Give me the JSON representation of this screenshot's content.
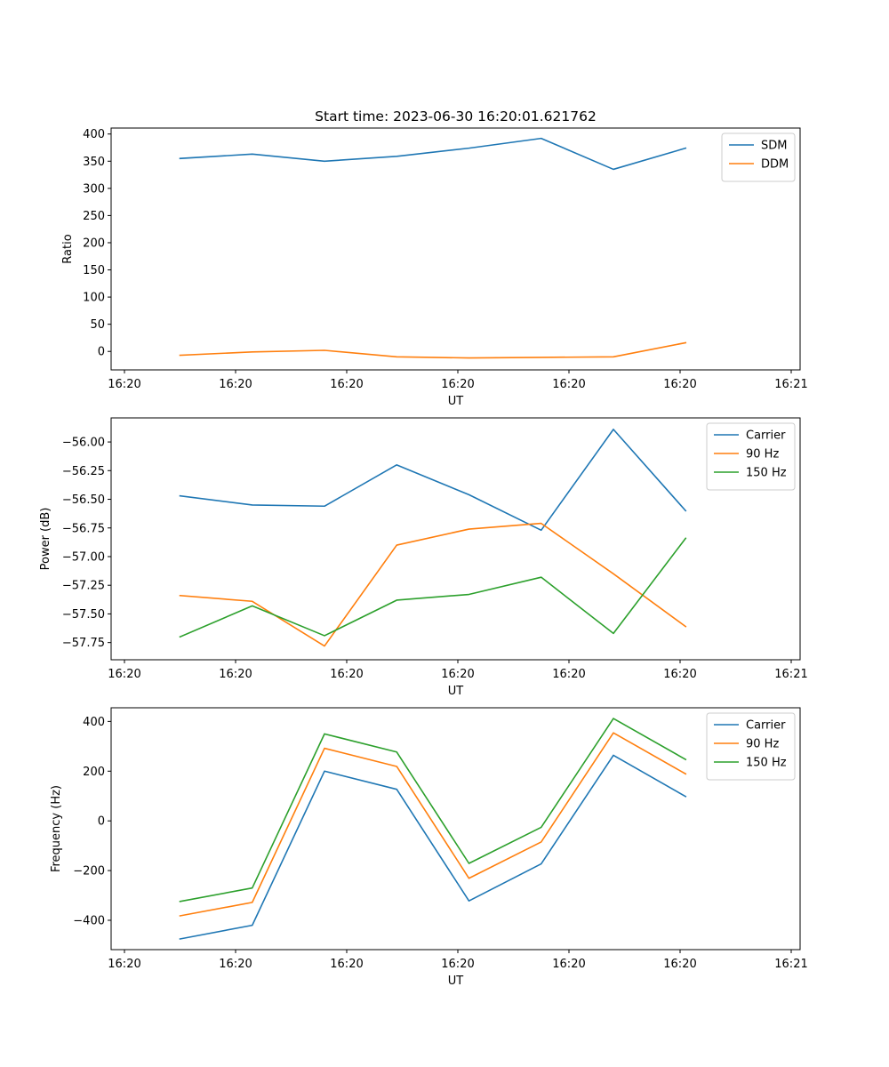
{
  "chart_data": [
    {
      "type": "line",
      "title": "Start time: 2023-06-30 16:20:01.621762",
      "xlabel": "UT",
      "ylabel": "Ratio",
      "x_tick_labels": [
        "16:20",
        "16:20",
        "16:20",
        "16:20",
        "16:20",
        "16:20",
        "16:20"
      ],
      "x_tick_labels_last": "16:21",
      "y_ticks": [
        0,
        50,
        100,
        150,
        200,
        250,
        300,
        350,
        400
      ],
      "y_tick_labels": [
        "0",
        "50",
        "100",
        "150",
        "200",
        "250",
        "300",
        "350",
        "400"
      ],
      "ylim": [
        -34,
        411
      ],
      "grid": false,
      "legend": "top-right",
      "series": [
        {
          "name": "SDM",
          "color": "#1f77b4",
          "values": [
            355,
            363,
            350,
            359,
            374,
            392,
            335,
            374
          ]
        },
        {
          "name": "DDM",
          "color": "#ff7f0e",
          "values": [
            -7,
            -1,
            2,
            -10,
            -12,
            -11,
            -10,
            16
          ]
        }
      ]
    },
    {
      "type": "line",
      "title": "",
      "xlabel": "UT",
      "ylabel": "Power (dB)",
      "x_tick_labels": [
        "16:20",
        "16:20",
        "16:20",
        "16:20",
        "16:20",
        "16:20",
        "16:20"
      ],
      "x_tick_labels_last": "16:21",
      "y_ticks": [
        -57.75,
        -57.5,
        -57.25,
        -57.0,
        -56.75,
        -56.5,
        -56.25,
        -56.0
      ],
      "y_tick_labels": [
        "−57.75",
        "−57.50",
        "−57.25",
        "−57.00",
        "−56.75",
        "−56.50",
        "−56.25",
        "−56.00"
      ],
      "ylim": [
        -57.9,
        -55.79
      ],
      "grid": false,
      "legend": "top-right",
      "series": [
        {
          "name": "Carrier",
          "color": "#1f77b4",
          "values": [
            -56.47,
            -56.55,
            -56.56,
            -56.2,
            -56.46,
            -56.77,
            -55.89,
            -56.6
          ]
        },
        {
          "name": "90 Hz",
          "color": "#ff7f0e",
          "values": [
            -57.34,
            -57.39,
            -57.78,
            -56.9,
            -56.76,
            -56.71,
            -57.15,
            -57.61
          ]
        },
        {
          "name": "150 Hz",
          "color": "#2ca02c",
          "values": [
            -57.7,
            -57.43,
            -57.69,
            -57.38,
            -57.33,
            -57.18,
            -57.67,
            -56.84
          ]
        }
      ]
    },
    {
      "type": "line",
      "title": "",
      "xlabel": "UT",
      "ylabel": "Frequency (Hz)",
      "x_tick_labels": [
        "16:20",
        "16:20",
        "16:20",
        "16:20",
        "16:20",
        "16:20",
        "16:20"
      ],
      "x_tick_labels_last": "16:21",
      "y_ticks": [
        -400,
        -200,
        0,
        200,
        400
      ],
      "y_tick_labels": [
        "−400",
        "−200",
        "0",
        "200",
        "400"
      ],
      "ylim": [
        -518,
        455
      ],
      "grid": false,
      "legend": "top-right",
      "series": [
        {
          "name": "Carrier",
          "color": "#1f77b4",
          "values": [
            -475,
            -420,
            200,
            127,
            -322,
            -173,
            264,
            98
          ]
        },
        {
          "name": "90 Hz",
          "color": "#ff7f0e",
          "values": [
            -382,
            -328,
            292,
            219,
            -231,
            -85,
            354,
            189
          ]
        },
        {
          "name": "150 Hz",
          "color": "#2ca02c",
          "values": [
            -324,
            -270,
            350,
            277,
            -171,
            -26,
            412,
            247
          ]
        }
      ]
    }
  ],
  "x_positions": [
    0.5,
    1.15,
    1.8,
    2.45,
    3.1,
    3.75,
    4.4,
    5.05
  ],
  "x_tick_positions": [
    0,
    1,
    2,
    3,
    4,
    5,
    6
  ],
  "xlim": [
    -0.12,
    6.08
  ]
}
